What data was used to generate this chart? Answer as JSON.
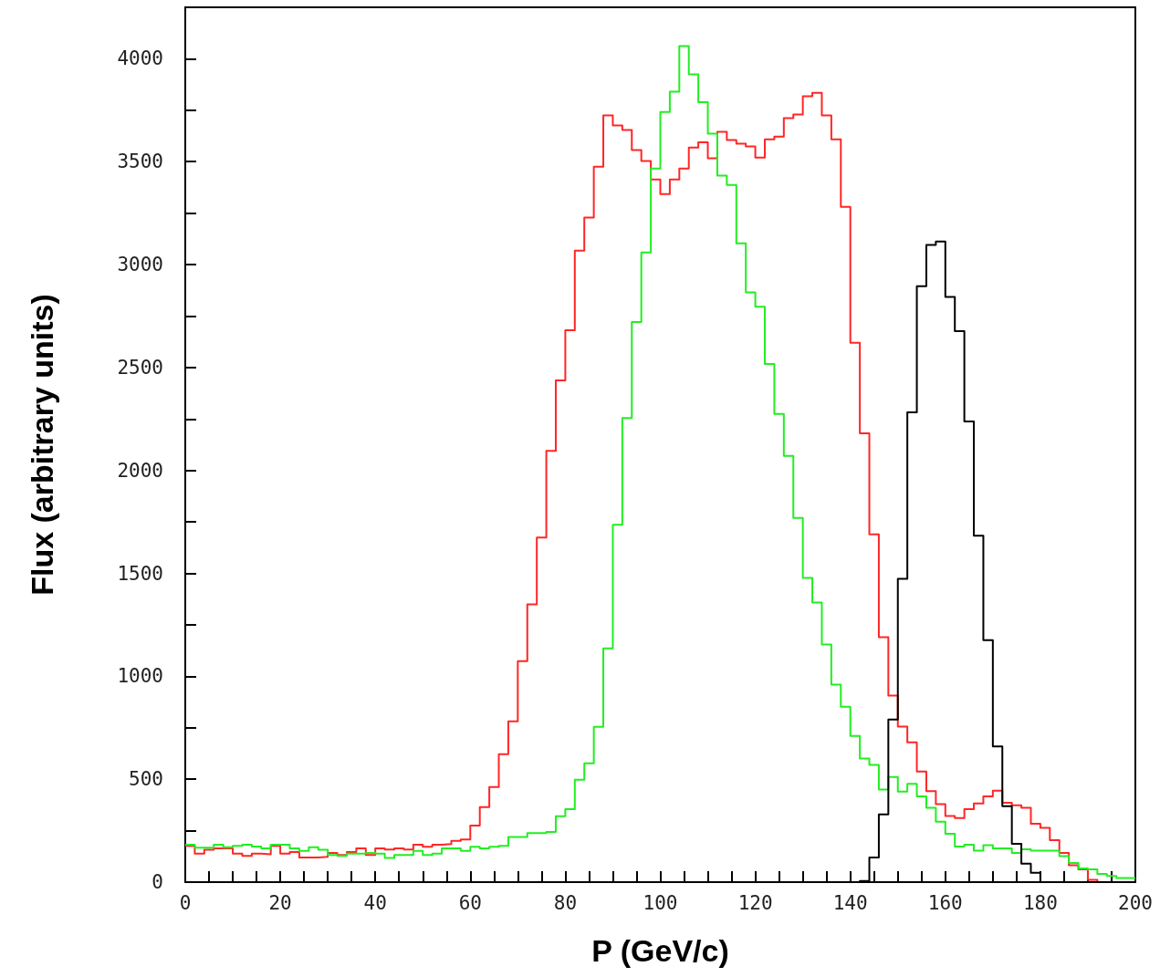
{
  "chart_data": {
    "type": "histogram",
    "xlabel": "P (GeV/c)",
    "ylabel": "Flux (arbitrary units)",
    "bins": [
      0,
      2,
      4,
      6,
      8,
      10,
      12,
      14,
      16,
      18,
      20,
      22,
      24,
      26,
      28,
      30,
      32,
      34,
      36,
      38,
      40,
      42,
      44,
      46,
      48,
      50,
      52,
      54,
      56,
      58,
      60,
      62,
      64,
      66,
      68,
      70,
      72,
      74,
      76,
      78,
      80,
      82,
      84,
      86,
      88,
      90,
      92,
      94,
      96,
      98,
      100,
      102,
      104,
      106,
      108,
      110,
      112,
      114,
      116,
      118,
      120,
      122,
      124,
      126,
      128,
      130,
      132,
      134,
      136,
      138,
      140,
      142,
      144,
      146,
      148,
      150,
      152,
      154,
      156,
      158,
      160,
      162,
      164,
      166,
      168,
      170,
      172,
      174,
      176,
      178,
      180,
      182,
      184,
      186,
      188,
      190,
      192,
      194,
      196,
      198,
      200
    ],
    "series": [
      {
        "color": "#ff2626",
        "values": [
          176,
          138,
          157,
          164,
          164,
          138,
          127,
          138,
          135,
          176,
          138,
          146,
          120,
          120,
          123,
          142,
          132,
          146,
          164,
          132,
          164,
          158,
          164,
          158,
          182,
          172,
          182,
          185,
          200,
          207,
          275,
          364,
          462,
          622,
          781,
          1074,
          1350,
          1674,
          2095,
          2437,
          2681,
          3068,
          3228,
          3476,
          3725,
          3676,
          3654,
          3556,
          3503,
          3414,
          3343,
          3414,
          3467,
          3569,
          3594,
          3516,
          3645,
          3605,
          3587,
          3574,
          3520,
          3609,
          3622,
          3711,
          3729,
          3818,
          3834,
          3725,
          3609,
          3281,
          2620,
          2180,
          1690,
          1190,
          906,
          756,
          679,
          537,
          442,
          379,
          321,
          311,
          355,
          382,
          417,
          444,
          386,
          373,
          361,
          284,
          264,
          204,
          142,
          82,
          62,
          11,
          0,
          0,
          0,
          0
        ]
      },
      {
        "color": "#22ee22",
        "values": [
          182,
          167,
          167,
          182,
          170,
          176,
          182,
          173,
          164,
          182,
          182,
          164,
          152,
          170,
          157,
          132,
          127,
          138,
          138,
          142,
          138,
          117,
          132,
          132,
          152,
          132,
          138,
          164,
          164,
          152,
          172,
          164,
          172,
          176,
          219,
          219,
          238,
          238,
          244,
          320,
          355,
          497,
          577,
          755,
          1136,
          1736,
          2255,
          2721,
          3059,
          3467,
          3742,
          3840,
          4062,
          3924,
          3789,
          3636,
          3432,
          3387,
          3103,
          2865,
          2795,
          2517,
          2275,
          2071,
          1769,
          1478,
          1358,
          1154,
          959,
          852,
          710,
          600,
          570,
          450,
          511,
          440,
          477,
          417,
          361,
          294,
          235,
          173,
          182,
          153,
          179,
          164,
          164,
          142,
          160,
          153,
          153,
          153,
          126,
          93,
          67,
          62,
          40,
          30,
          20,
          20
        ]
      },
      {
        "color": "#000000",
        "values": [
          0,
          0,
          0,
          0,
          0,
          0,
          0,
          0,
          0,
          0,
          0,
          0,
          0,
          0,
          0,
          0,
          0,
          0,
          0,
          0,
          0,
          0,
          0,
          0,
          0,
          0,
          0,
          0,
          0,
          0,
          0,
          0,
          0,
          0,
          0,
          0,
          0,
          0,
          0,
          0,
          0,
          0,
          0,
          0,
          0,
          0,
          0,
          0,
          0,
          0,
          0,
          0,
          0,
          0,
          0,
          0,
          0,
          0,
          0,
          0,
          0,
          0,
          0,
          0,
          0,
          0,
          0,
          0,
          0,
          0,
          0,
          5,
          120,
          329,
          790,
          1474,
          2282,
          2895,
          3096,
          3112,
          2843,
          2677,
          2238,
          1683,
          1176,
          659,
          369,
          186,
          90,
          45,
          0,
          0,
          0,
          0,
          0,
          0,
          0,
          0,
          0,
          0
        ]
      }
    ],
    "xlim": [
      0,
      200
    ],
    "xticks": [
      0,
      20,
      40,
      60,
      80,
      100,
      120,
      140,
      160,
      180,
      200
    ],
    "ylim": [
      0,
      4250
    ],
    "yticks": [
      0,
      500,
      1000,
      1500,
      2000,
      2500,
      3000,
      3500,
      4000
    ]
  }
}
